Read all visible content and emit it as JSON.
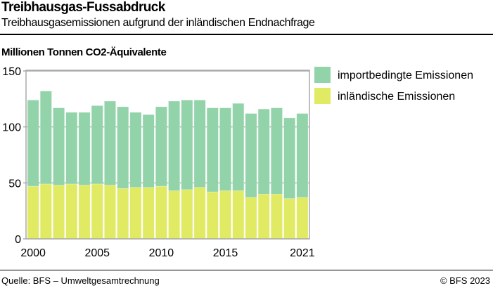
{
  "header": {
    "title": "Treibhausgas-Fussabdruck",
    "subtitle": "Treibhausgasemissionen aufgrund der inländischen Endnachfrage"
  },
  "footer": {
    "source": "Quelle: BFS – Umweltgesamtrechnung",
    "copyright": "© BFS 2023"
  },
  "chart_data": {
    "type": "bar",
    "stacked": true,
    "title": "Treibhausgas-Fussabdruck",
    "subtitle": "Treibhausgasemissionen aufgrund der inländischen Endnachfrage",
    "ylabel": "Millionen Tonnen CO2-Äquivalente",
    "ylim": [
      0,
      150
    ],
    "yticks": [
      0,
      50,
      100,
      150
    ],
    "xticks": [
      "2000",
      "2005",
      "2010",
      "2015",
      "2021"
    ],
    "grid": true,
    "legend": "right",
    "categories": [
      "2000",
      "2001",
      "2002",
      "2003",
      "2004",
      "2005",
      "2006",
      "2007",
      "2008",
      "2009",
      "2010",
      "2011",
      "2012",
      "2013",
      "2014",
      "2015",
      "2016",
      "2017",
      "2018",
      "2019",
      "2020",
      "2021"
    ],
    "series": [
      {
        "name": "inländische Emissionen",
        "color": "#e0ea62",
        "values": [
          47,
          49,
          48,
          49,
          48,
          49,
          48,
          45,
          46,
          46,
          47,
          43,
          44,
          46,
          42,
          43,
          43,
          37,
          40,
          40,
          36,
          37
        ]
      },
      {
        "name": "importbedingte Emissionen",
        "color": "#92d3a9",
        "values": [
          77,
          83,
          69,
          64,
          65,
          70,
          75,
          73,
          67,
          65,
          71,
          80,
          80,
          78,
          75,
          74,
          78,
          75,
          76,
          77,
          72,
          75
        ]
      }
    ]
  }
}
